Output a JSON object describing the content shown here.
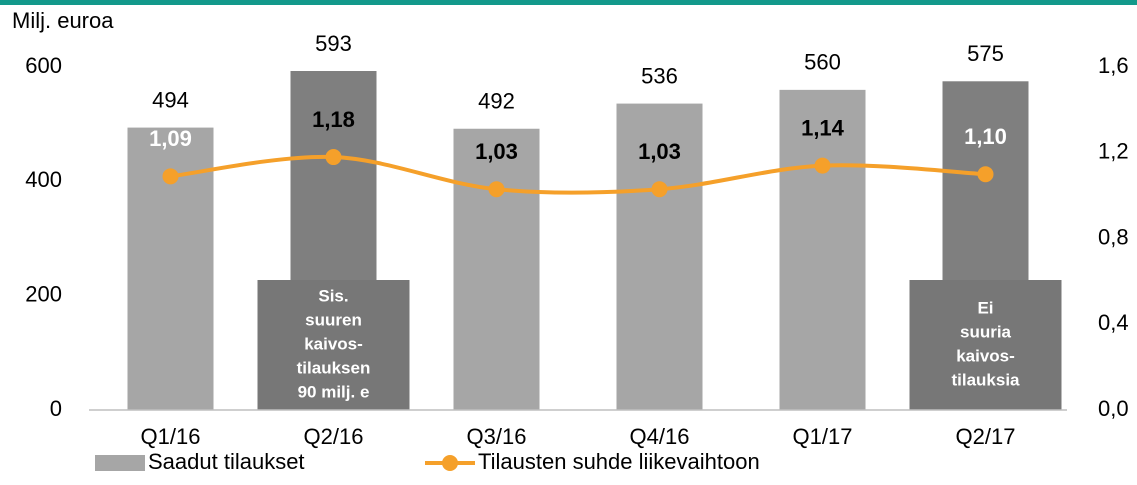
{
  "chart_data": {
    "type": "bar",
    "y_axis_label": "Milj. euroa",
    "categories": [
      "Q1/16",
      "Q2/16",
      "Q3/16",
      "Q4/16",
      "Q1/17",
      "Q2/17"
    ],
    "series": [
      {
        "name": "Saadut tilaukset",
        "type": "bar",
        "color": "#a6a6a6",
        "colors": [
          "#a6a6a6",
          "#7f7f7f",
          "#a6a6a6",
          "#a6a6a6",
          "#a6a6a6",
          "#7f7f7f"
        ],
        "values": [
          494,
          593,
          492,
          536,
          560,
          575
        ]
      },
      {
        "name": "Tilausten suhde liikevaihtoon",
        "type": "line",
        "axis": "y2",
        "color": "#f5a02a",
        "values": [
          1.09,
          1.18,
          1.03,
          1.03,
          1.14,
          1.1
        ],
        "value_labels": [
          "1,09",
          "1,18",
          "1,03",
          "1,03",
          "1,14",
          "1,10"
        ],
        "value_label_colors": [
          "#ffffff",
          "#000000",
          "#000000",
          "#000000",
          "#000000",
          "#ffffff"
        ]
      }
    ],
    "ylim": [
      0,
      600
    ],
    "yticks": [
      0,
      200,
      400,
      600
    ],
    "y2lim": [
      0,
      1.6
    ],
    "y2ticks": [
      {
        "value": 0,
        "label": "0,0"
      },
      {
        "value": 0.4,
        "label": "0,4"
      },
      {
        "value": 0.8,
        "label": "0,8"
      },
      {
        "value": 1.2,
        "label": "1,2"
      },
      {
        "value": 1.6,
        "label": "1,6"
      }
    ],
    "annotations": [
      {
        "lines": [
          "Sis.",
          "suuren",
          "kaivos-",
          "tilauksen",
          "90 milj. e"
        ]
      },
      {
        "lines": [
          "Ei",
          "suuria",
          "kaivos-",
          "tilauksia"
        ]
      }
    ],
    "legend": "bottom",
    "grid": false
  }
}
